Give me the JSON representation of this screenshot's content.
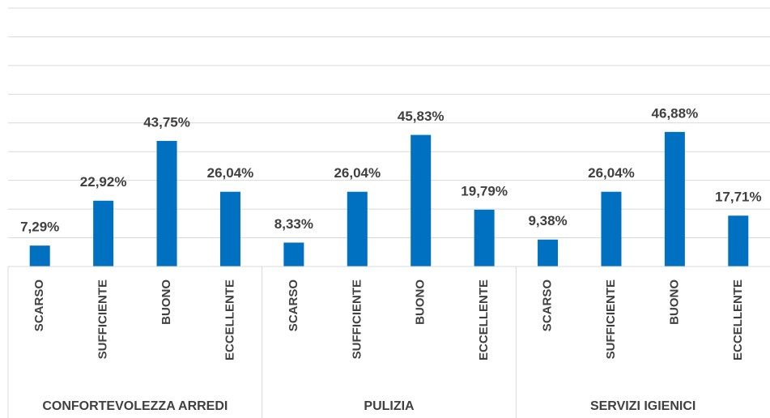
{
  "chart_data": {
    "type": "bar",
    "groups": [
      "CONFORTEVOLEZZA ARREDI",
      "PULIZIA",
      "SERVIZI IGIENICI"
    ],
    "categories": [
      "SCARSO",
      "SUFFICIENTE",
      "BUONO",
      "ECCELLENTE",
      "SCARSO",
      "SUFFICIENTE",
      "BUONO",
      "ECCELLENTE",
      "SCARSO",
      "SUFFICIENTE",
      "BUONO",
      "ECCELLENTE"
    ],
    "values": [
      7.29,
      22.92,
      43.75,
      26.04,
      8.33,
      26.04,
      45.83,
      19.79,
      9.38,
      26.04,
      46.88,
      17.71
    ],
    "value_labels": [
      "7,29%",
      "22,92%",
      "43,75%",
      "26,04%",
      "8,33%",
      "26,04%",
      "45,83%",
      "19,79%",
      "9,38%",
      "26,04%",
      "46,88%",
      "17,71%"
    ],
    "color": "#0070c0",
    "ylim": [
      0,
      90
    ],
    "yticks": [
      0,
      10,
      20,
      30,
      40,
      50,
      60,
      70,
      80,
      90
    ],
    "grid": true
  }
}
